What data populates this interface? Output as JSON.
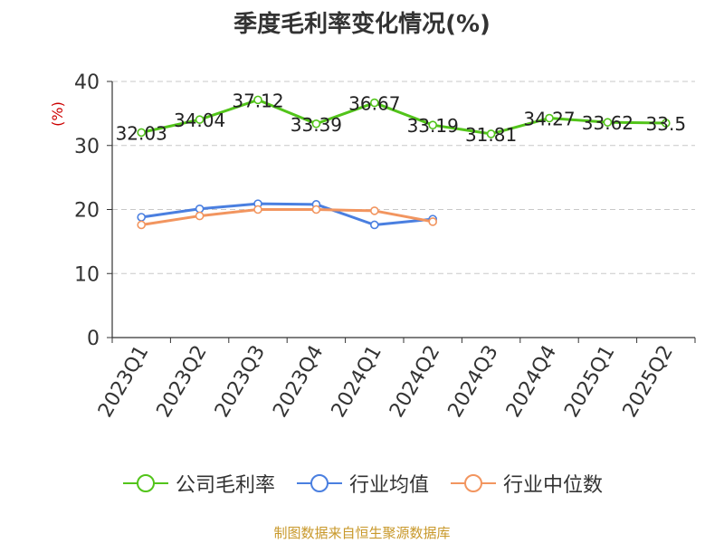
{
  "chart_data": {
    "type": "line",
    "title": "季度毛利率变化情况(%)",
    "ylabel": "(%)",
    "categories": [
      "2023Q1",
      "2023Q2",
      "2023Q3",
      "2023Q4",
      "2024Q1",
      "2024Q2",
      "2024Q3",
      "2024Q4",
      "2025Q1",
      "2025Q2"
    ],
    "ylim": [
      0,
      40
    ],
    "yticks": [
      0,
      10,
      20,
      30,
      40
    ],
    "grid": true,
    "legend_position": "bottom",
    "series": [
      {
        "name": "公司毛利率",
        "color": "#52c41a",
        "values": [
          32.03,
          34.04,
          37.12,
          33.39,
          36.67,
          33.19,
          31.81,
          34.27,
          33.62,
          33.5
        ],
        "data_labels": [
          "32.03",
          "34.04",
          "37.12",
          "33.39",
          "36.67",
          "33.19",
          "31.81",
          "34.27",
          "33.62",
          "33.5"
        ]
      },
      {
        "name": "行业均值",
        "color": "#4a7fe0",
        "values": [
          18.8,
          20.1,
          20.9,
          20.8,
          17.6,
          18.5,
          null,
          null,
          null,
          null
        ]
      },
      {
        "name": "行业中位数",
        "color": "#f2955f",
        "values": [
          17.6,
          19.0,
          20.0,
          20.0,
          19.8,
          18.1,
          null,
          null,
          null,
          null
        ]
      }
    ]
  },
  "footer": {
    "source": "制图数据来自恒生聚源数据库"
  }
}
